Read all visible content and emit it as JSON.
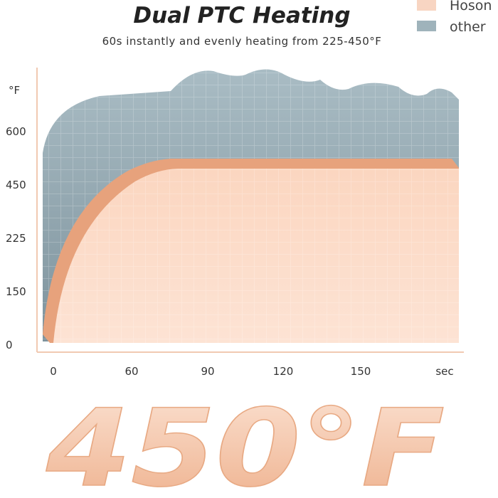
{
  "title": "Dual PTC Heating",
  "subtitle": "60s instantly and evenly heating from 225-450°F",
  "legend": [
    "Hoson",
    "other"
  ],
  "y_axis": {
    "unit": "°F",
    "ticks": [
      "600",
      "450",
      "225",
      "150",
      "0"
    ]
  },
  "x_axis": {
    "ticks": [
      "0",
      "60",
      "90",
      "120",
      "150",
      "sec"
    ]
  },
  "big_text": "450°F"
}
